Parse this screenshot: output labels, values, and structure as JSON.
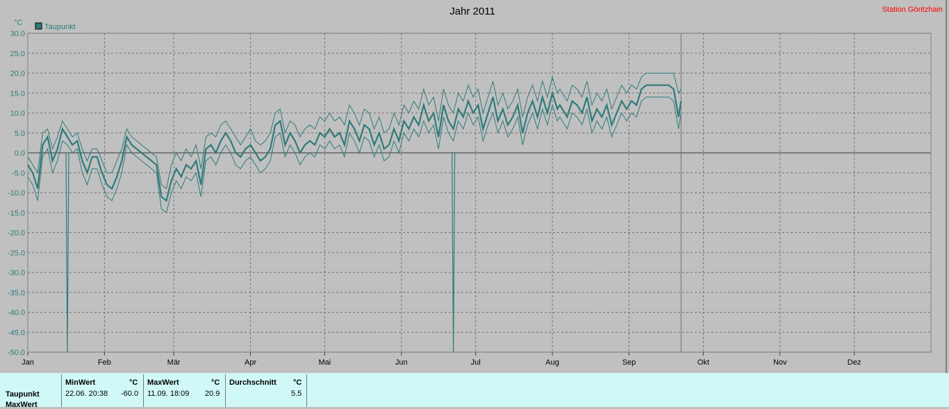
{
  "title": "Jahr 2011",
  "station": "Station Göritzhain",
  "unit": "°C",
  "legend": {
    "label": "Taupunkt",
    "color": "#2f7a7a"
  },
  "chart_data": {
    "type": "line",
    "ylim": [
      -50,
      30
    ],
    "yticks": [
      "30.0",
      "25.0",
      "20.0",
      "15.0",
      "10.0",
      "5.0",
      "0.0",
      "-5.0",
      "-10.0",
      "-15.0",
      "-20.0",
      "-25.0",
      "-30.0",
      "-35.0",
      "-40.0",
      "-45.0",
      "-50.0"
    ],
    "months": [
      "Jan",
      "Feb",
      "Mär",
      "Apr",
      "Mai",
      "Jun",
      "Jul",
      "Aug",
      "Sep",
      "Okt",
      "Nov",
      "Dez"
    ],
    "data_end_day": 265,
    "grid": true,
    "series": [
      {
        "name": "Taupunkt",
        "x": [
          1,
          3,
          5,
          7,
          9,
          11,
          13,
          15,
          17,
          19,
          21,
          23,
          25,
          27,
          29,
          31,
          33,
          35,
          37,
          39,
          41,
          43,
          45,
          47,
          49,
          51,
          53,
          55,
          57,
          59,
          61,
          63,
          65,
          67,
          69,
          71,
          73,
          75,
          77,
          79,
          81,
          83,
          85,
          87,
          89,
          91,
          93,
          95,
          97,
          99,
          101,
          103,
          105,
          107,
          109,
          111,
          113,
          115,
          117,
          119,
          121,
          123,
          125,
          127,
          129,
          131,
          133,
          135,
          137,
          139,
          141,
          143,
          145,
          147,
          149,
          151,
          153,
          155,
          157,
          159,
          161,
          163,
          165,
          167,
          169,
          171,
          173,
          175,
          177,
          179,
          181,
          183,
          185,
          187,
          189,
          191,
          193,
          195,
          197,
          199,
          201,
          203,
          205,
          207,
          209,
          211,
          213,
          215,
          216,
          219,
          221,
          223,
          225,
          227,
          229,
          231,
          233,
          235,
          237,
          239,
          241,
          243,
          245,
          247,
          249,
          251,
          253,
          254,
          256,
          258,
          260,
          262,
          264,
          265
        ],
        "avg": [
          -3,
          -5,
          -9,
          2,
          4,
          -2,
          1,
          6,
          4,
          2,
          3,
          -2,
          -5,
          -1,
          -1,
          -5,
          -8,
          -9,
          -6,
          -2,
          4,
          2,
          1,
          0,
          -1,
          -2,
          -3,
          -11,
          -12,
          -7,
          -4,
          -6,
          -3,
          -4,
          -2,
          -8,
          1,
          2,
          0,
          3,
          5,
          3,
          0,
          -1,
          1,
          2,
          0,
          -2,
          -1,
          1,
          7,
          8,
          2,
          5,
          3,
          0,
          2,
          3,
          2,
          5,
          4,
          6,
          4,
          5,
          2,
          8,
          6,
          3,
          7,
          6,
          2,
          5,
          1,
          2,
          6,
          3,
          8,
          6,
          9,
          7,
          12,
          8,
          10,
          4,
          12,
          8,
          6,
          11,
          9,
          13,
          10,
          12,
          6,
          10,
          14,
          8,
          11,
          7,
          9,
          12,
          5,
          10,
          13,
          9,
          14,
          10,
          15,
          11,
          12,
          9,
          13,
          12,
          10,
          14,
          8,
          11,
          9,
          12,
          7,
          10,
          13,
          11,
          13,
          12,
          16,
          17,
          17,
          17,
          17,
          17,
          17,
          16,
          9,
          13,
          8,
          14,
          7,
          8,
          10
        ],
        "max": [
          -1,
          -3,
          -5,
          5,
          6,
          1,
          4,
          8,
          6,
          4,
          5,
          1,
          -2,
          1,
          1,
          -2,
          -5,
          -5,
          -2,
          1,
          6,
          4,
          3,
          2,
          1,
          0,
          -1,
          -8,
          -9,
          -3,
          0,
          -2,
          1,
          -1,
          2,
          -4,
          4,
          5,
          4,
          7,
          8,
          6,
          4,
          2,
          4,
          6,
          3,
          2,
          3,
          5,
          10,
          11,
          5,
          8,
          7,
          4,
          6,
          7,
          6,
          9,
          8,
          10,
          8,
          9,
          7,
          12,
          10,
          7,
          11,
          10,
          6,
          9,
          5,
          6,
          10,
          7,
          12,
          10,
          13,
          11,
          16,
          12,
          14,
          8,
          16,
          12,
          10,
          15,
          13,
          17,
          14,
          16,
          10,
          14,
          18,
          12,
          15,
          11,
          13,
          16,
          9,
          14,
          17,
          13,
          18,
          14,
          19,
          15,
          16,
          13,
          17,
          16,
          14,
          18,
          12,
          15,
          13,
          16,
          11,
          14,
          17,
          15,
          17,
          16,
          19,
          20,
          20,
          20,
          20,
          20,
          20,
          20,
          15,
          16,
          12,
          17,
          10,
          11,
          13
        ],
        "min": [
          -6,
          -8,
          -12,
          -1,
          1,
          -5,
          -2,
          3,
          2,
          0,
          1,
          -5,
          -8,
          -4,
          -4,
          -8,
          -11,
          -12,
          -9,
          -5,
          2,
          0,
          -1,
          -2,
          -3,
          -4,
          -5,
          -14,
          -15,
          -10,
          -7,
          -9,
          -6,
          -7,
          -5,
          -11,
          -2,
          -1,
          -3,
          0,
          2,
          0,
          -3,
          -4,
          -2,
          -1,
          -3,
          -5,
          -4,
          -2,
          4,
          5,
          -1,
          2,
          0,
          -3,
          -1,
          0,
          -1,
          2,
          1,
          3,
          1,
          2,
          -1,
          5,
          3,
          0,
          4,
          3,
          -1,
          2,
          -2,
          -1,
          3,
          0,
          5,
          3,
          6,
          4,
          8,
          5,
          7,
          1,
          9,
          5,
          3,
          8,
          6,
          10,
          7,
          9,
          3,
          7,
          10,
          5,
          8,
          4,
          6,
          9,
          2,
          7,
          10,
          6,
          11,
          7,
          12,
          8,
          9,
          6,
          10,
          9,
          7,
          11,
          5,
          8,
          6,
          9,
          4,
          7,
          10,
          8,
          10,
          9,
          13,
          14,
          14,
          14,
          14,
          14,
          14,
          13,
          6,
          10,
          5,
          11,
          4,
          5,
          7
        ]
      }
    ],
    "spikes": [
      {
        "x": 17,
        "value": -60.0
      },
      {
        "x": 173,
        "value": -60.0
      }
    ]
  },
  "stats": {
    "row_labels": [
      "Taupunkt",
      "MaxWert"
    ],
    "columns": [
      {
        "header": "MinWert",
        "unit": "°C",
        "when": "22.06.  20:38",
        "value": "-60.0"
      },
      {
        "header": "MaxWert",
        "unit": "°C",
        "when": "11.09.  18:09",
        "value": "20.9"
      },
      {
        "header": "Durchschnitt",
        "unit": "°C",
        "when": "",
        "value": "5.5"
      }
    ]
  }
}
